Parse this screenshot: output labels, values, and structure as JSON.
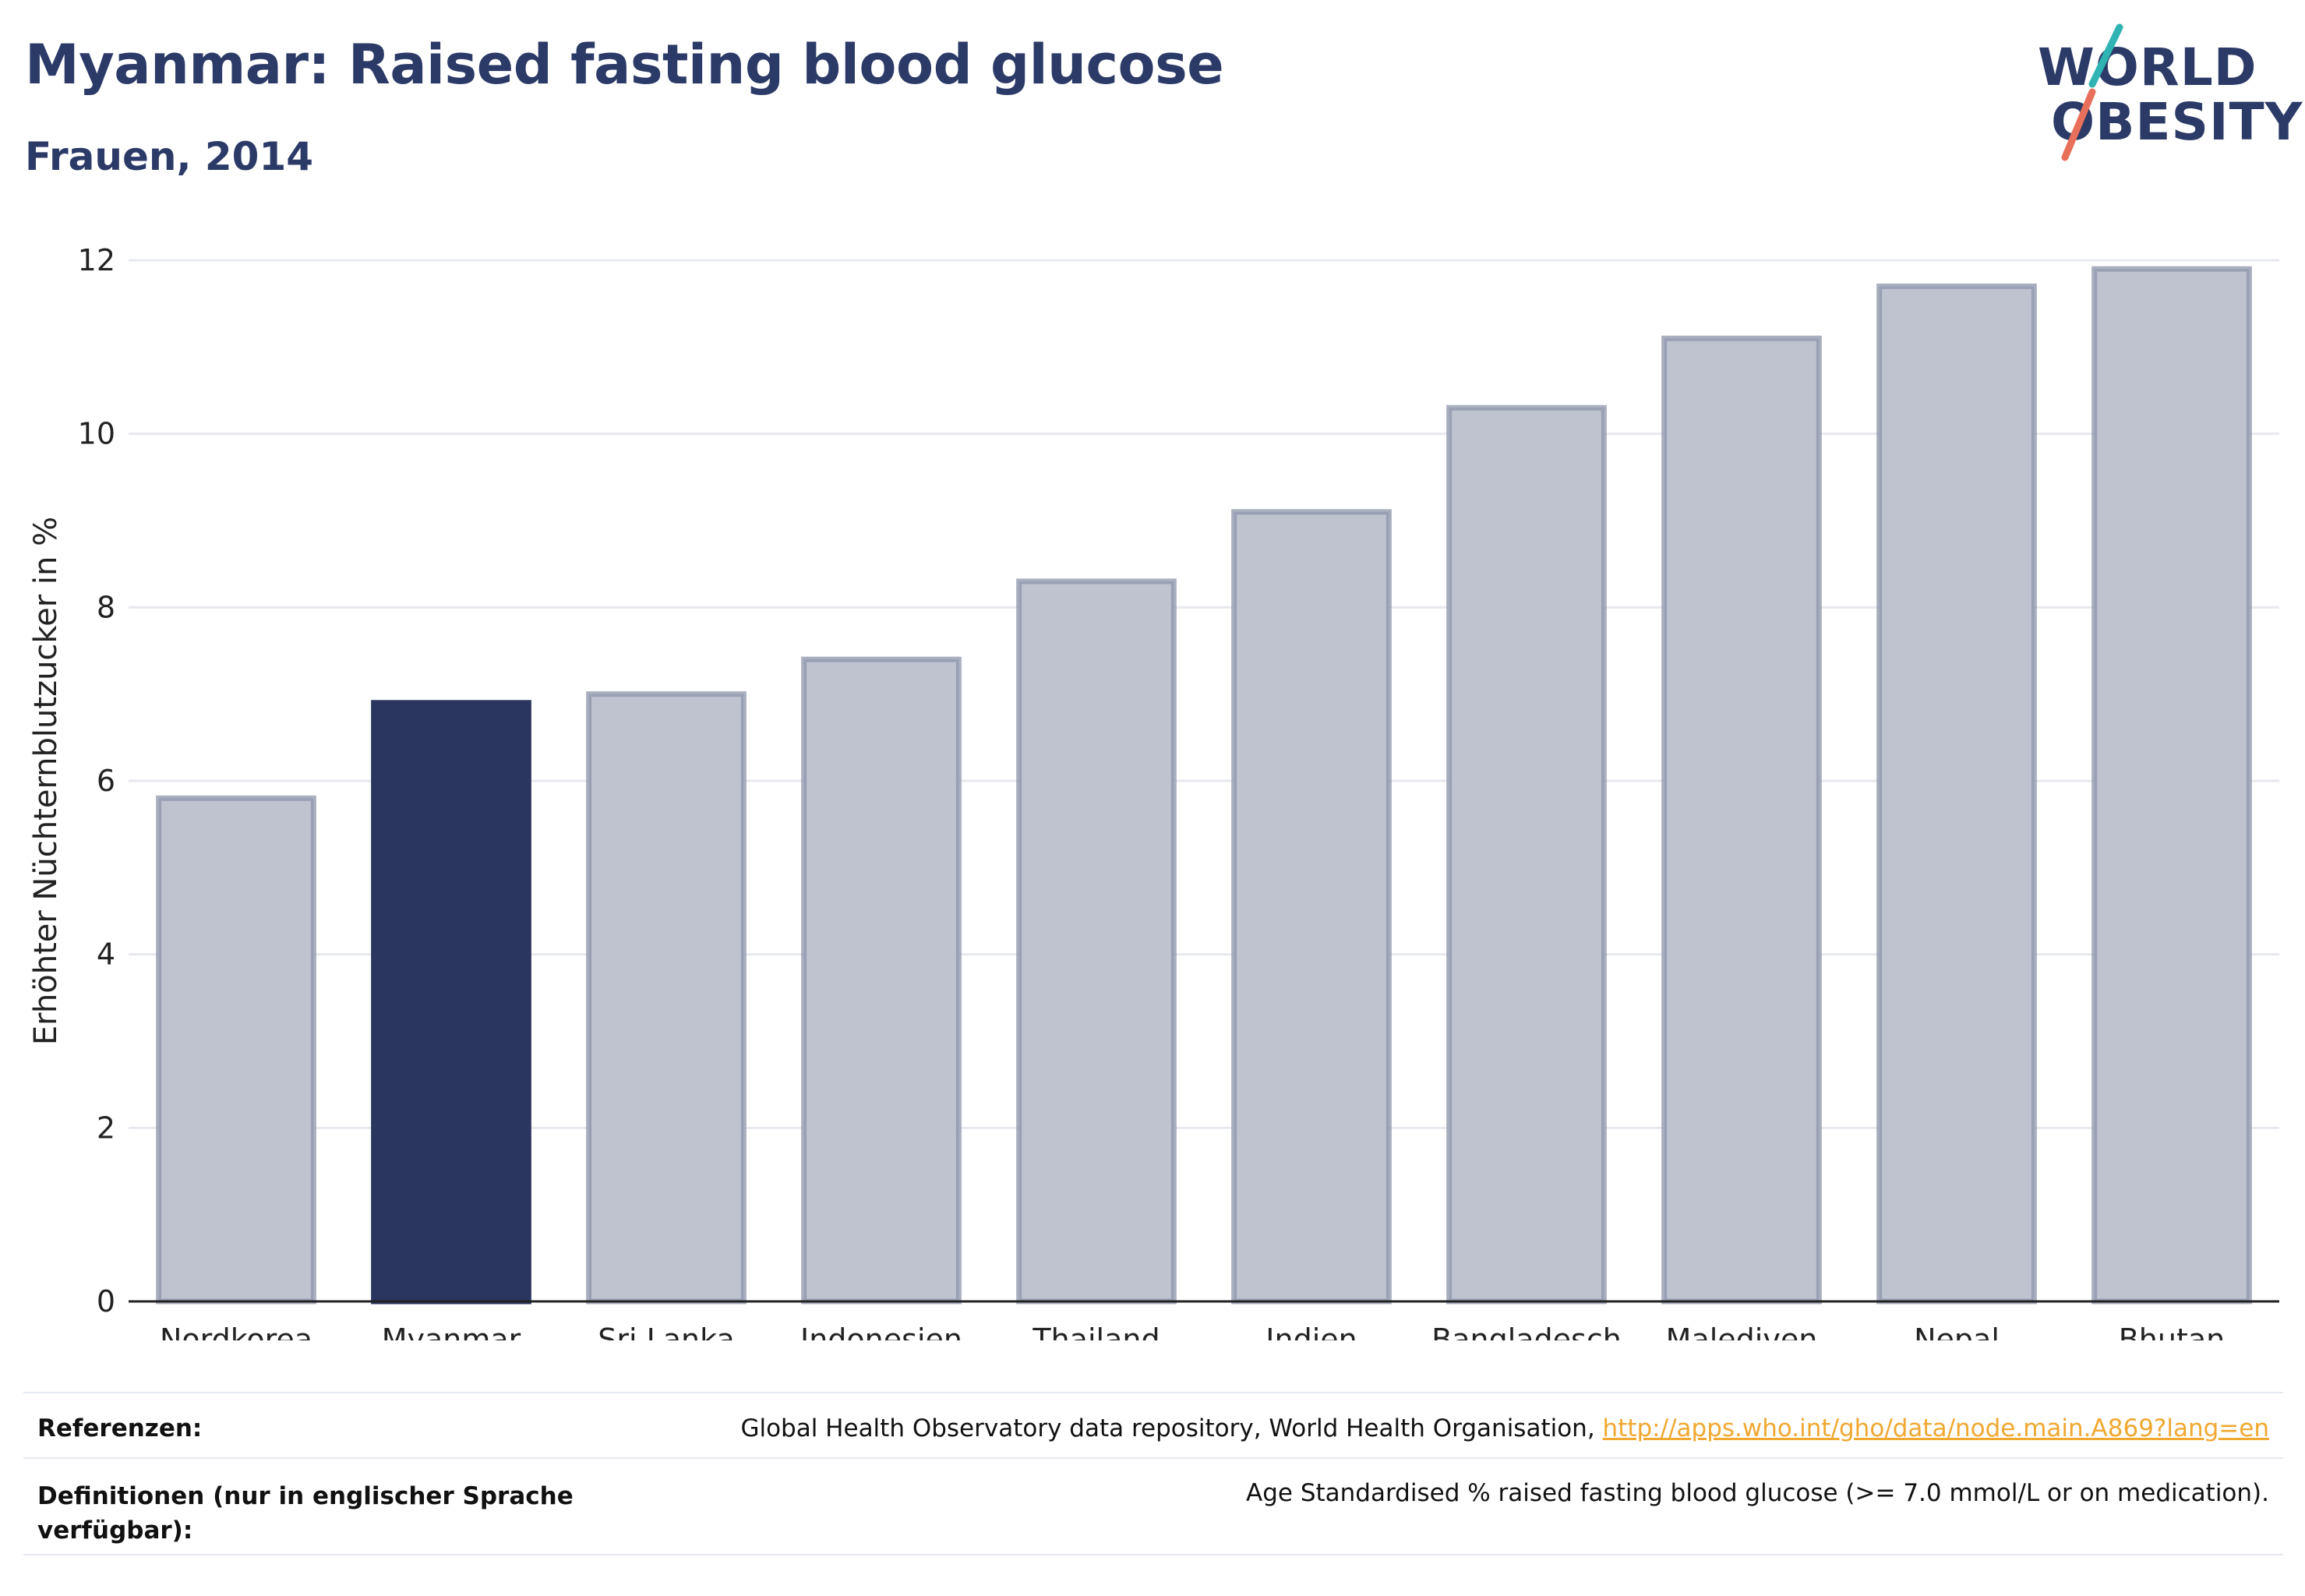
{
  "header": {
    "title": "Myanmar: Raised fasting blood glucose",
    "subtitle": "Frauen, 2014"
  },
  "logo": {
    "line1": "WORLD",
    "line2": "OBESITY",
    "slash_colors": [
      "#2fb3b3",
      "#e8705a"
    ]
  },
  "colors": {
    "highlight": "#2b3660",
    "bar": "#bfc2cf",
    "bar_edge": "#8e94ab",
    "text": "#2b3a67",
    "link": "#f0a830"
  },
  "chart_data": {
    "type": "bar",
    "categories": [
      "Nordkorea",
      "Myanmar",
      "Sri Lanka",
      "Indonesien",
      "Thailand",
      "Indien",
      "Bangladesch",
      "Malediven",
      "Nepal",
      "Bhutan"
    ],
    "values": [
      5.8,
      6.9,
      7.0,
      7.4,
      8.3,
      9.1,
      10.3,
      11.1,
      11.7,
      11.9
    ],
    "highlight": "Myanmar",
    "title": "Myanmar: Raised fasting blood glucose",
    "subtitle": "Frauen, 2014",
    "xlabel": "",
    "ylabel": "Erhöhter Nüchternblutzucker in %",
    "ylim": [
      0,
      12
    ],
    "yticks": [
      0,
      2,
      4,
      6,
      8,
      10,
      12
    ],
    "grid": true,
    "legend": "none"
  },
  "references": {
    "ref_label": "Referenzen:",
    "ref_text": "Global Health Observatory data repository, World Health Organisation, ",
    "ref_link": "http://apps.who.int/gho/data/node.main.A869?lang=en",
    "def_label_line1": "Definitionen (nur in englischer Sprache",
    "def_label_line2": "verfügbar):",
    "def_text": "Age Standardised % raised fasting blood glucose (>= 7.0 mmol/L or on medication)."
  }
}
